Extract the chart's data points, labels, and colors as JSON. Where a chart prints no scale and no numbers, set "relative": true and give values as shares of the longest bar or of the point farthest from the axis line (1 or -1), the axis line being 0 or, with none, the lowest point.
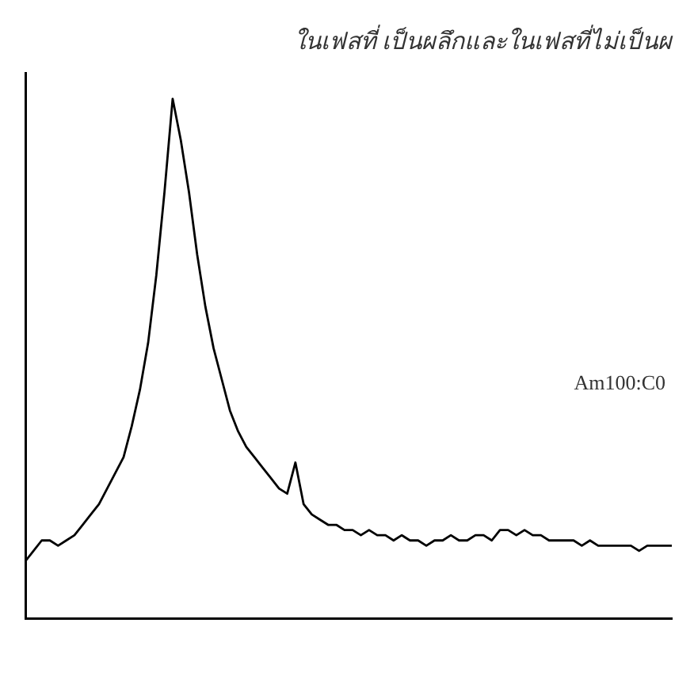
{
  "chart_data": {
    "type": "line",
    "relative": true,
    "title": "ในเฟสที่ เป็นผลึกและในเฟสที่ไม่เป็นผ",
    "annotations": [
      "Am100:C0"
    ],
    "categories": [
      null,
      null,
      null,
      null,
      null,
      null,
      null,
      null,
      null,
      null,
      null,
      null,
      null,
      null,
      null,
      null,
      null,
      null,
      null,
      null,
      null,
      null,
      null,
      null,
      null,
      null,
      null,
      null,
      null,
      null,
      null,
      null,
      null,
      null,
      null,
      null,
      null,
      null,
      null,
      null,
      null,
      null,
      null,
      null,
      null,
      null,
      null,
      null,
      null,
      null,
      null,
      null,
      null,
      null,
      null,
      null,
      null,
      null,
      null,
      null,
      null,
      null,
      null,
      null,
      null,
      null,
      null,
      null,
      null,
      null,
      null,
      null,
      null,
      null,
      null,
      null,
      null,
      null,
      null,
      null
    ],
    "series": [
      {
        "color": "#000000",
        "values": [
          0.11,
          0.13,
          0.15,
          0.15,
          0.14,
          0.15,
          0.16,
          0.18,
          0.2,
          0.22,
          0.25,
          0.28,
          0.31,
          0.37,
          0.44,
          0.53,
          0.66,
          0.82,
          1.0,
          0.92,
          0.82,
          0.7,
          0.6,
          0.52,
          0.46,
          0.4,
          0.36,
          0.33,
          0.31,
          0.29,
          0.27,
          0.25,
          0.24,
          0.3,
          0.22,
          0.2,
          0.19,
          0.18,
          0.18,
          0.17,
          0.17,
          0.16,
          0.17,
          0.16,
          0.16,
          0.15,
          0.16,
          0.15,
          0.15,
          0.14,
          0.15,
          0.15,
          0.16,
          0.15,
          0.15,
          0.16,
          0.16,
          0.15,
          0.17,
          0.17,
          0.16,
          0.17,
          0.16,
          0.16,
          0.15,
          0.15,
          0.15,
          0.15,
          0.14,
          0.15,
          0.14,
          0.14,
          0.14,
          0.14,
          0.14,
          0.13,
          0.14,
          0.14,
          0.14,
          0.14
        ]
      }
    ],
    "grid": false,
    "legend": false,
    "marker": "none",
    "line_style": "solid"
  }
}
